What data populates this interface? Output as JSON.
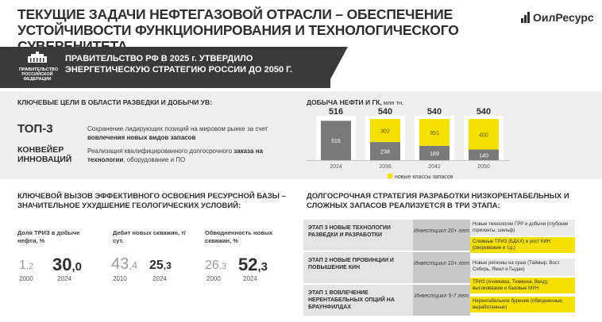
{
  "header": {
    "title": "ТЕКУЩИЕ ЗАДАЧИ НЕФТЕГАЗОВОЙ ОТРАСЛИ – ОБЕСПЕЧЕНИЕ УСТОЙЧИВОСТИ ФУНКЦИОНИРОВАНИЯ И ТЕХНОЛОГИЧЕСКОГО СУВЕРЕНИТЕТА",
    "logo": "ОилРесурс"
  },
  "banner": {
    "emblem_text": "ПРАВИТЕЛЬСТВО РОССИЙСКОЙ ФЕДЕРАЦИИ",
    "text": "ПРАВИТЕЛЬСТВО РФ В 2025 г. УТВЕРДИЛО ЭНЕРГЕТИЧЕСКУЮ СТРАТЕГИЮ РОССИИ ДО 2050 Г."
  },
  "goals": {
    "heading": "КЛЮЧЕВЫЕ ЦЕЛИ В ОБЛАСТИ РАЗВЕДКИ И ДОБЫЧИ УВ:",
    "items": [
      {
        "label": "ТОП-3",
        "desc_a": "Сохранение лидирующих позиций на мировом рынке за счет ",
        "desc_b": "вовлечения новых видов запасов",
        "desc_c": ""
      },
      {
        "label": "КОНВЕЙЕР ИННОВАЦИЙ",
        "desc_a": "Реализация квалифицированного долгосрочного ",
        "desc_b": "заказа на технологии",
        "desc_c": ", оборудование и ПО"
      }
    ]
  },
  "production": {
    "heading": "ДОБЫЧА НЕФТИ И ГК,",
    "unit": " млн тн."
  },
  "chart_data": {
    "type": "bar",
    "stacked": true,
    "categories": [
      "2024",
      "2036",
      "2042",
      "2050"
    ],
    "totals": [
      516,
      540,
      540,
      540
    ],
    "series": [
      {
        "name": "",
        "values": [
          516,
          238,
          189,
          140
        ],
        "color": "#7a7a7a"
      },
      {
        "name": "новые классы запасов",
        "values": [
          0,
          302,
          351,
          400
        ],
        "color": "#f5e000"
      }
    ],
    "ylim": [
      0,
      540
    ],
    "legend": "bottom-right"
  },
  "challenge": {
    "heading": "КЛЮЧЕВОЙ ВЫЗОВ ЭФФЕКТИВНОГО ОСВОЕНИЯ РЕСУРСНОЙ БАЗЫ – ЗНАЧИТЕЛЬНОЕ УХУДШЕНИЕ ГЕОЛОГИЧЕСКИХ УСЛОВИЙ:",
    "metrics": [
      {
        "label": "Доля ТРИЗ в добыче нефти, %",
        "old_int": "1",
        "old_frac": ",2",
        "old_year": "2000",
        "new_int": "30",
        "new_frac": ",0",
        "new_year": "2024"
      },
      {
        "label": "Дебит новых скважин, т/сут.",
        "old_int": "43",
        "old_frac": ",4",
        "old_year": "2010",
        "new_int": "25",
        "new_frac": ",3",
        "new_year": "2024"
      },
      {
        "label": "Обводненность новых скважин, %",
        "old_int": "26",
        "old_frac": ",3",
        "old_year": "2000",
        "new_int": "52",
        "new_frac": ",3",
        "new_year": "2024"
      }
    ]
  },
  "strategy": {
    "heading": "ДОЛГОСРОЧНАЯ СТРАТЕГИЯ РАЗРАБОТКИ НИЗКОРЕНТАБЕЛЬНЫХ И СЛОЖНЫХ ЗАПАСОВ РЕАЛИЗУЕТСЯ В ТРИ ЭТАПА:",
    "stages": [
      {
        "title": "ЭТАП 3 НОВЫЕ ТЕХНОЛОГИИ РАЗВЕДКИ И РАЗРАБОТКИ",
        "invest": "Инвестцикл 20+ лет"
      },
      {
        "title": "ЭТАП 2 НОВЫЕ ПРОВИНЦИИ И ПОВЫШЕНИЕ КИН",
        "invest": "Инвестцикл 10+ лет"
      },
      {
        "title": "ЭТАП 1 ВОВЛЕЧЕНИЕ НЕРЕНТАБЕЛЬНЫХ ОПЦИЙ НА БРАУНФИЛДАХ",
        "invest": "Инвестцикл 5-7 лет"
      }
    ],
    "items": [
      {
        "text": "Новые технологии ГРР и добычи (глубокие горизонты, шельф)",
        "highlight": false
      },
      {
        "text": "Сложные ТРИЗ (БДАХ) и рост КИН (сверхвязкие и т.д.)",
        "highlight": true
      },
      {
        "text": "Новые регионы на суше (Таймыр, Вост. Сибирь, Ямал и Гыдан)",
        "highlight": false
      },
      {
        "text": "ТРИЗ (Ачимовка, Тюменка, Венд), высоковязкие и базовые МУН",
        "highlight": true
      },
      {
        "text": "Нерентабельное бурение (обводненные, выработанные)",
        "highlight": true
      }
    ]
  }
}
